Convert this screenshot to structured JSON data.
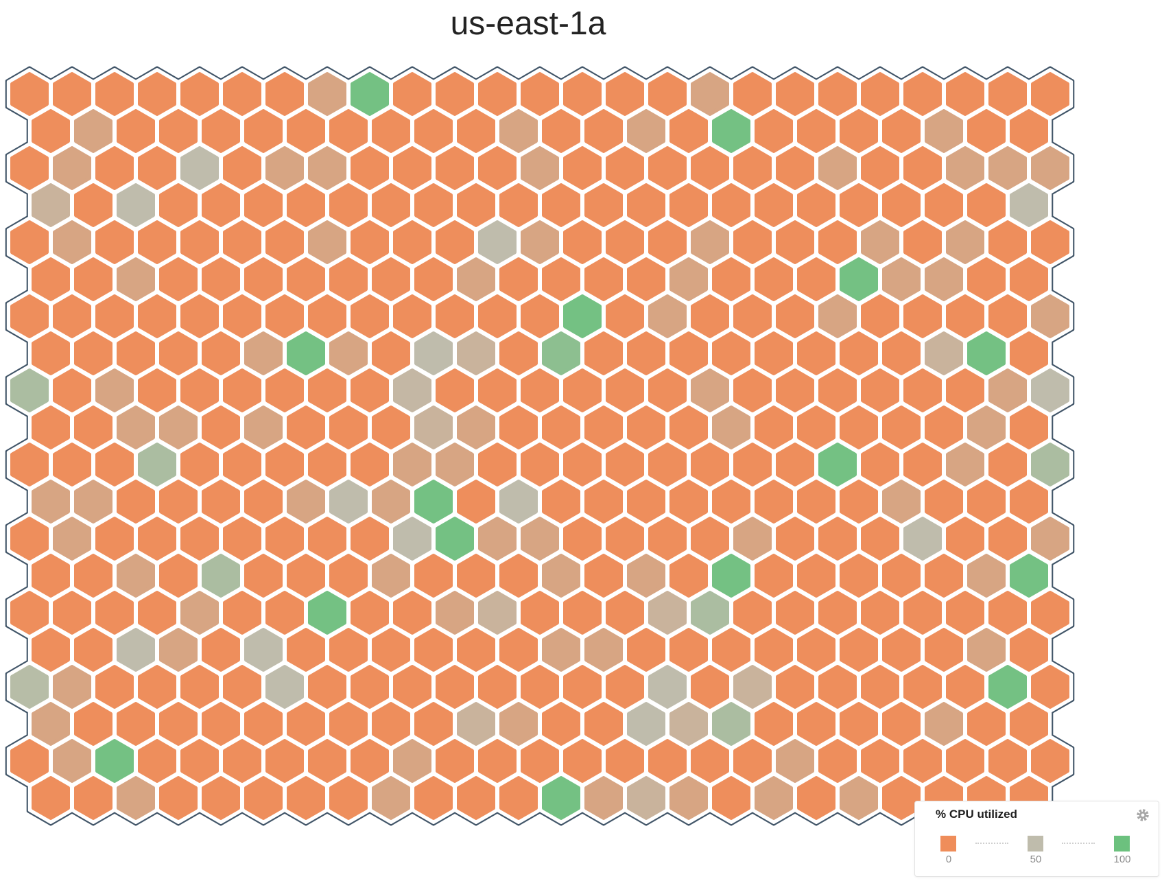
{
  "title": "us-east-1a",
  "legend": {
    "title": "% CPU utilized",
    "items": [
      {
        "label": "0",
        "value": 0
      },
      {
        "label": "50",
        "value": 50
      },
      {
        "label": "100",
        "value": 100
      }
    ]
  },
  "palette": {
    "low": "#EF8D5A",
    "mid": "#BFBCAC",
    "high": "#6CC17E",
    "outline": "#415568"
  },
  "chart_data": {
    "type": "heatmap",
    "subtype": "hexbin-honeycomb",
    "title": "us-east-1a",
    "metric": "% CPU utilized",
    "domain": [
      0,
      100
    ],
    "legend_position": "bottom-right",
    "layout_hint": {
      "rows": 20,
      "cols_odd_rows": 25,
      "cols_even_rows": 24
    },
    "rows": [
      [
        1,
        1,
        1,
        1,
        1,
        1,
        1,
        25,
        95,
        1,
        1,
        1,
        1,
        1,
        1,
        1,
        25,
        1,
        1,
        1,
        1,
        1,
        1,
        1,
        1
      ],
      [
        1,
        25,
        1,
        1,
        1,
        1,
        1,
        1,
        1,
        1,
        1,
        25,
        1,
        1,
        25,
        1,
        95,
        1,
        1,
        1,
        1,
        25,
        1,
        1
      ],
      [
        1,
        25,
        1,
        1,
        50,
        1,
        25,
        25,
        1,
        1,
        1,
        1,
        25,
        1,
        1,
        1,
        1,
        1,
        1,
        25,
        1,
        1,
        25,
        25,
        25
      ],
      [
        40,
        1,
        50,
        1,
        1,
        1,
        1,
        1,
        1,
        1,
        1,
        1,
        1,
        1,
        1,
        1,
        1,
        1,
        1,
        1,
        1,
        1,
        1,
        50
      ],
      [
        1,
        25,
        1,
        1,
        1,
        1,
        1,
        25,
        1,
        1,
        1,
        50,
        25,
        1,
        1,
        1,
        25,
        1,
        1,
        1,
        25,
        1,
        25,
        1,
        1
      ],
      [
        1,
        1,
        25,
        1,
        1,
        1,
        1,
        1,
        1,
        1,
        25,
        1,
        1,
        1,
        1,
        25,
        1,
        1,
        1,
        95,
        25,
        25,
        1,
        1
      ],
      [
        1,
        1,
        1,
        1,
        1,
        1,
        1,
        1,
        1,
        1,
        1,
        1,
        1,
        95,
        1,
        25,
        1,
        1,
        1,
        25,
        1,
        1,
        1,
        1,
        25
      ],
      [
        1,
        1,
        1,
        1,
        1,
        25,
        95,
        25,
        1,
        50,
        40,
        1,
        80,
        1,
        1,
        1,
        1,
        1,
        1,
        1,
        1,
        40,
        95,
        1
      ],
      [
        62,
        1,
        25,
        1,
        1,
        1,
        1,
        1,
        1,
        45,
        1,
        1,
        1,
        1,
        1,
        1,
        25,
        1,
        1,
        1,
        1,
        1,
        1,
        25,
        50
      ],
      [
        1,
        1,
        25,
        25,
        1,
        25,
        1,
        1,
        1,
        40,
        25,
        1,
        1,
        1,
        1,
        1,
        25,
        1,
        1,
        1,
        1,
        1,
        25,
        1
      ],
      [
        1,
        1,
        1,
        62,
        1,
        1,
        1,
        1,
        1,
        25,
        25,
        1,
        1,
        1,
        1,
        1,
        1,
        1,
        1,
        95,
        1,
        1,
        25,
        1,
        62
      ],
      [
        25,
        25,
        1,
        1,
        1,
        1,
        25,
        50,
        25,
        95,
        1,
        50,
        1,
        1,
        1,
        1,
        1,
        1,
        1,
        1,
        25,
        1,
        1,
        1
      ],
      [
        1,
        25,
        1,
        1,
        1,
        1,
        1,
        1,
        1,
        50,
        95,
        25,
        25,
        1,
        1,
        1,
        1,
        25,
        1,
        1,
        1,
        50,
        1,
        1,
        25
      ],
      [
        1,
        1,
        25,
        1,
        62,
        1,
        1,
        1,
        25,
        1,
        1,
        1,
        25,
        1,
        25,
        1,
        95,
        1,
        1,
        1,
        1,
        1,
        25,
        95
      ],
      [
        1,
        1,
        1,
        1,
        25,
        1,
        1,
        95,
        1,
        1,
        25,
        40,
        1,
        1,
        1,
        40,
        62,
        1,
        1,
        1,
        1,
        1,
        1,
        1,
        1
      ],
      [
        1,
        1,
        50,
        25,
        1,
        50,
        1,
        1,
        1,
        1,
        1,
        1,
        25,
        25,
        1,
        1,
        1,
        1,
        1,
        1,
        1,
        1,
        25,
        1
      ],
      [
        55,
        25,
        1,
        1,
        1,
        1,
        50,
        1,
        1,
        1,
        1,
        1,
        1,
        1,
        1,
        50,
        1,
        40,
        1,
        1,
        1,
        1,
        1,
        95,
        1
      ],
      [
        25,
        1,
        1,
        1,
        1,
        1,
        1,
        1,
        1,
        1,
        40,
        25,
        1,
        1,
        50,
        40,
        62,
        1,
        1,
        1,
        1,
        25,
        1,
        1
      ],
      [
        1,
        25,
        95,
        1,
        1,
        1,
        1,
        1,
        1,
        25,
        1,
        1,
        1,
        1,
        1,
        1,
        1,
        1,
        25,
        1,
        1,
        1,
        1,
        1,
        1
      ],
      [
        1,
        1,
        25,
        1,
        1,
        1,
        1,
        1,
        25,
        1,
        1,
        1,
        95,
        25,
        40,
        25,
        1,
        25,
        1,
        25,
        1,
        1,
        1,
        1
      ]
    ]
  }
}
